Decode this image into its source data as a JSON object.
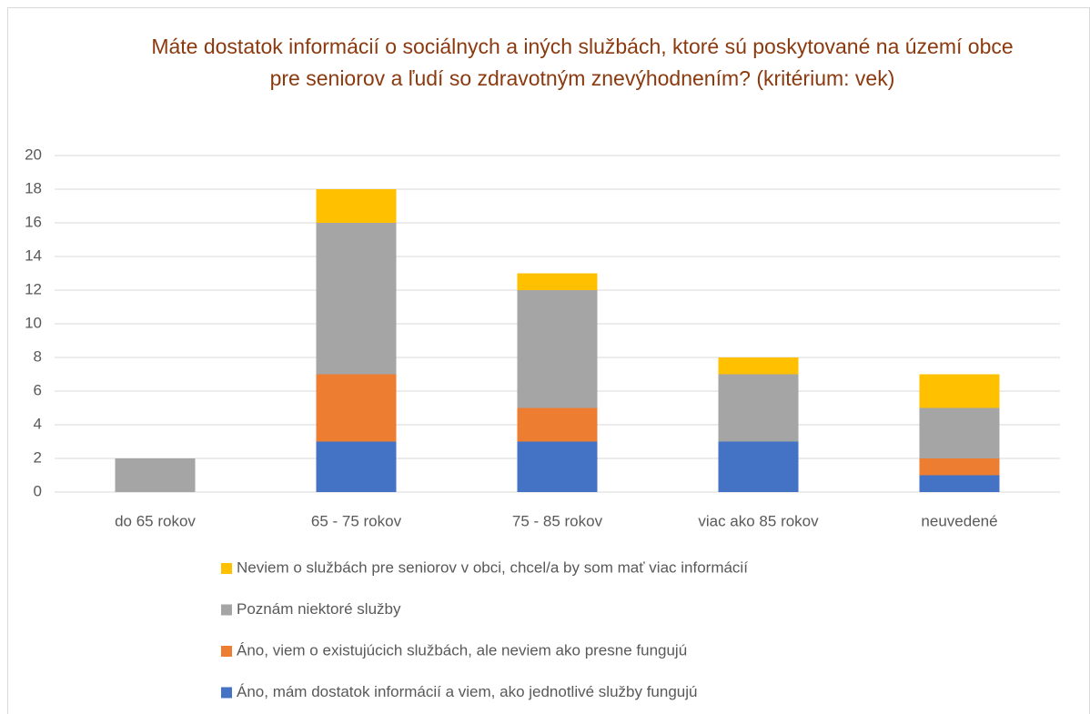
{
  "chart_data": {
    "type": "bar",
    "stacked": true,
    "title": "Máte dostatok informácií o sociálnych a iných službách, ktoré sú poskytované na území obce pre seniorov a ľudí so zdravotným znevýhodnením? (kritérium: vek)",
    "categories": [
      "do 65 rokov",
      "65 - 75 rokov",
      "75 - 85 rokov",
      "viac ako 85 rokov",
      "neuvedené"
    ],
    "series": [
      {
        "name": "Áno, mám dostatok informácií a viem, ako jednotlivé služby fungujú",
        "color": "#4472c4",
        "values": [
          0,
          3,
          3,
          3,
          1
        ]
      },
      {
        "name": "Áno, viem o existujúcich službách, ale neviem ako presne fungujú",
        "color": "#ed7d31",
        "values": [
          0,
          4,
          2,
          0,
          1
        ]
      },
      {
        "name": "Poznám niektoré služby",
        "color": "#a5a5a5",
        "values": [
          2,
          9,
          7,
          4,
          3
        ]
      },
      {
        "name": "Neviem o službách pre seniorov v obci, chcel/a by som mať viac informácií",
        "color": "#ffc000",
        "values": [
          0,
          2,
          1,
          1,
          2
        ]
      }
    ],
    "ylim": [
      0,
      20
    ],
    "yticks": [
      0,
      2,
      4,
      6,
      8,
      10,
      12,
      14,
      16,
      18,
      20
    ],
    "grid": true,
    "legend": "bottom"
  }
}
